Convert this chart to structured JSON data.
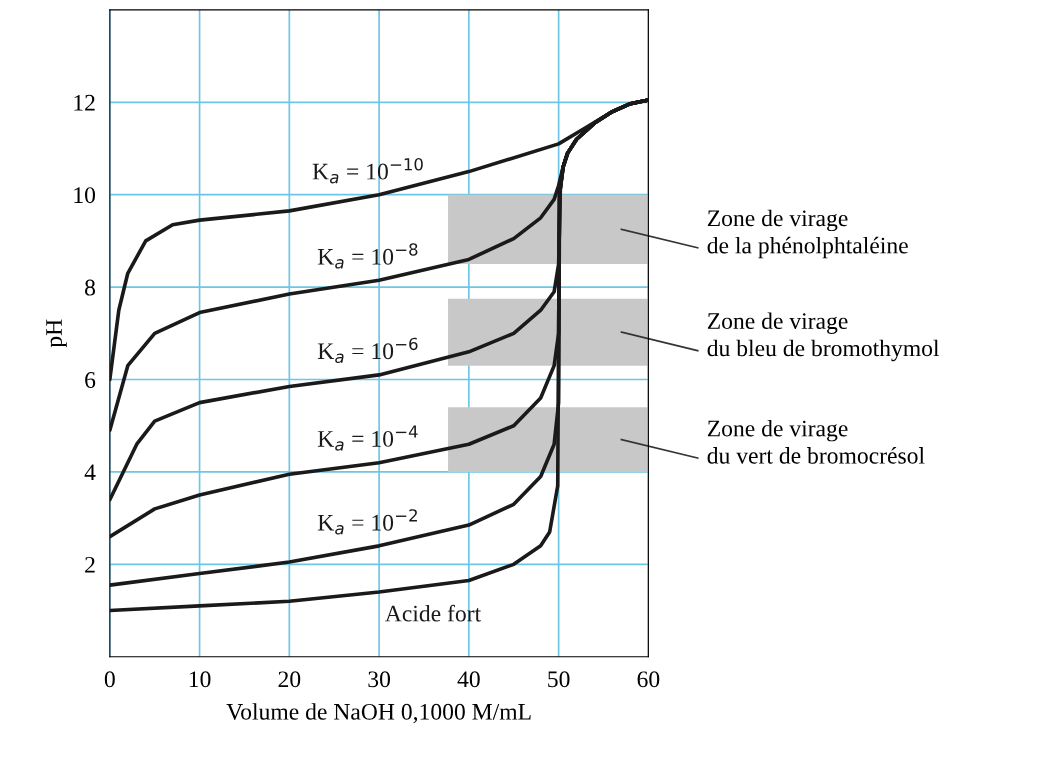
{
  "chart_data": {
    "type": "line",
    "xlabel": "Volume de NaOH 0,1000 M/mL",
    "ylabel": "pH",
    "xlim": [
      0,
      60
    ],
    "ylim": [
      0,
      14
    ],
    "xticks": [
      0,
      10,
      20,
      30,
      40,
      50,
      60
    ],
    "yticks": [
      2,
      4,
      6,
      8,
      10,
      12
    ],
    "grid": true,
    "series": [
      {
        "name": "Acide fort",
        "color": "#1a1a1a",
        "x": [
          0,
          10,
          20,
          30,
          40,
          45,
          48,
          49,
          49.9,
          50,
          50.1,
          50.5,
          51,
          52,
          54,
          56,
          58,
          60
        ],
        "values": [
          1.0,
          1.1,
          1.2,
          1.4,
          1.65,
          2.0,
          2.4,
          2.7,
          3.7,
          7.0,
          10.0,
          10.6,
          10.9,
          11.2,
          11.55,
          11.8,
          11.97,
          12.05
        ]
      },
      {
        "name": "K$_{a}$ = 10$^{−2}$",
        "color": "#1a1a1a",
        "x": [
          0,
          10,
          20,
          30,
          40,
          45,
          48,
          49.5,
          50,
          50.1,
          50.5,
          51,
          52,
          54,
          56,
          58,
          60
        ],
        "values": [
          1.55,
          1.8,
          2.05,
          2.4,
          2.85,
          3.3,
          3.9,
          4.6,
          5.5,
          10.0,
          10.6,
          10.9,
          11.2,
          11.55,
          11.8,
          11.97,
          12.05
        ]
      },
      {
        "name": "K$_{a}$ = 10$^{−4}$",
        "color": "#1a1a1a",
        "x": [
          0,
          5,
          10,
          20,
          30,
          40,
          45,
          48,
          49.5,
          50,
          50.1,
          50.5,
          51,
          52,
          54,
          56,
          58,
          60
        ],
        "values": [
          2.6,
          3.2,
          3.5,
          3.95,
          4.2,
          4.6,
          5.0,
          5.6,
          6.3,
          7.0,
          10.0,
          10.6,
          10.9,
          11.2,
          11.55,
          11.8,
          11.97,
          12.05
        ]
      },
      {
        "name": "K$_{a}$ = 10$^{−6}$",
        "color": "#1a1a1a",
        "x": [
          0,
          3,
          5,
          10,
          20,
          30,
          40,
          45,
          48,
          49.5,
          50,
          50.2,
          50.5,
          51,
          52,
          54,
          56,
          58,
          60
        ],
        "values": [
          3.4,
          4.6,
          5.1,
          5.5,
          5.85,
          6.1,
          6.6,
          7.0,
          7.5,
          7.9,
          8.5,
          10.2,
          10.6,
          10.9,
          11.2,
          11.55,
          11.8,
          11.97,
          12.05
        ]
      },
      {
        "name": "K$_{a}$ = 10$^{−8}$",
        "color": "#1a1a1a",
        "x": [
          0,
          2,
          5,
          10,
          20,
          30,
          40,
          45,
          48,
          49.5,
          50,
          50.5,
          51,
          52,
          54,
          56,
          58,
          60
        ],
        "values": [
          4.9,
          6.3,
          7.0,
          7.45,
          7.85,
          8.15,
          8.6,
          9.05,
          9.5,
          9.9,
          10.2,
          10.6,
          10.9,
          11.2,
          11.55,
          11.8,
          11.97,
          12.05
        ]
      },
      {
        "name": "K$_{a}$ = 10$^{−10}$",
        "color": "#1a1a1a",
        "x": [
          0,
          1,
          2,
          4,
          7,
          10,
          20,
          30,
          40,
          50,
          53,
          56,
          58,
          60
        ],
        "values": [
          6.0,
          7.5,
          8.3,
          9.0,
          9.35,
          9.45,
          9.65,
          10.0,
          10.5,
          11.1,
          11.45,
          11.8,
          11.97,
          12.05
        ]
      }
    ],
    "bands": [
      {
        "axis": "y",
        "from": 8.5,
        "to": 10,
        "color": "#c8c8c8",
        "label": "Zone de virage\nde la phénolphtaléine"
      },
      {
        "axis": "y",
        "from": 6.3,
        "to": 7.75,
        "color": "#c8c8c8",
        "label": "Zone de virage\ndu bleu de bromothymol"
      },
      {
        "axis": "y",
        "from": 4.0,
        "to": 5.4,
        "color": "#c8c8c8",
        "label": "Zone de virage\ndu vert de bromocrésol"
      }
    ]
  }
}
